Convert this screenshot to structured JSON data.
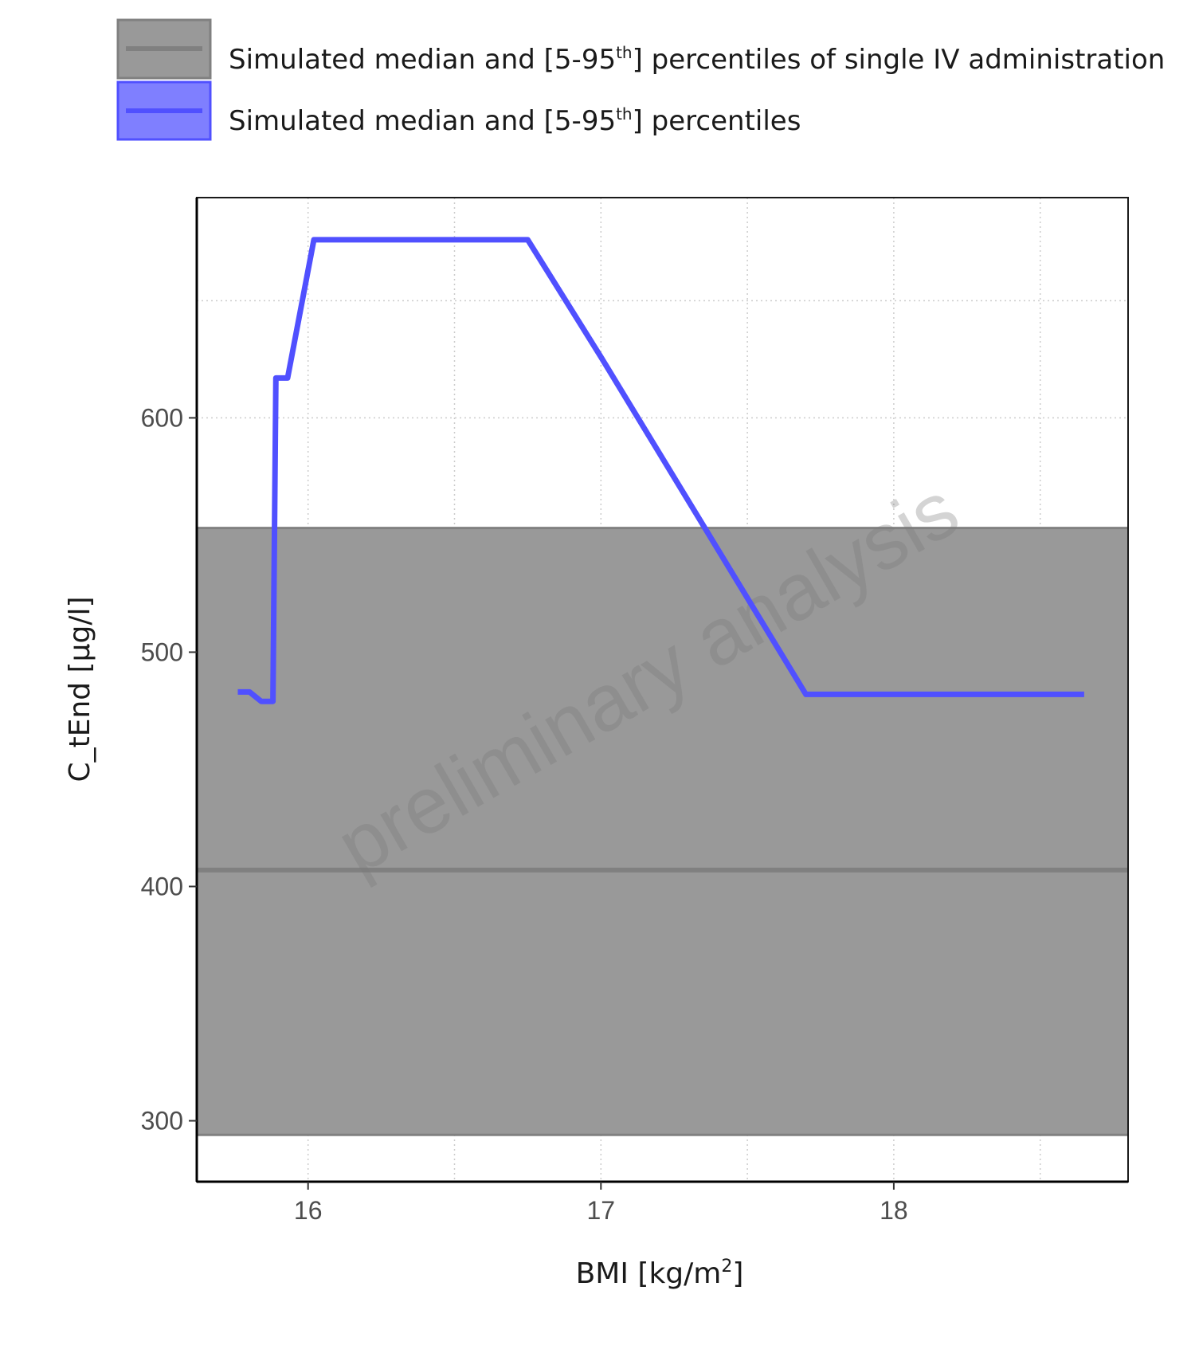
{
  "chart_data": {
    "type": "line",
    "xlabel": "BMI [kg/m²]",
    "xlabel_parts": {
      "main": "BMI [kg/m",
      "sup": "2",
      "end": "]"
    },
    "ylabel": "C_tEnd [µg/l]",
    "xlim": [
      15.62,
      18.8
    ],
    "ylim": [
      274,
      694
    ],
    "x_ticks": [
      16,
      17,
      18
    ],
    "x_tick_labels": [
      "16",
      "17",
      "18"
    ],
    "y_ticks": [
      300,
      400,
      500,
      600
    ],
    "y_tick_labels": [
      "300",
      "400",
      "500",
      "600"
    ],
    "grid": true,
    "legend_position": "top",
    "watermark": "preliminary analysis",
    "legend": [
      {
        "name": "Simulated median and [5-95th] percentiles of single IV administration",
        "parts": {
          "pre": "Simulated median and [5-95",
          "sup": "th",
          "post": "] percentiles of single IV administration"
        },
        "fill": "#999999",
        "line": "#808080"
      },
      {
        "name": "Simulated median and [5-95th] percentiles",
        "parts": {
          "pre": "Simulated median and [5-95",
          "sup": "th",
          "post": "] percentiles"
        },
        "fill": "#7f7fff",
        "line": "#5050ff"
      }
    ],
    "reference_band": {
      "name": "Simulated median and [5-95th] percentiles of single IV administration",
      "median": 407,
      "p5": 294,
      "p95": 553,
      "color": "#999999",
      "line_color": "#808080"
    },
    "series": [
      {
        "name": "Simulated median and [5-95th] percentiles",
        "color": "#5050ff",
        "x": [
          15.76,
          15.8,
          15.84,
          15.88,
          15.89,
          15.9,
          15.93,
          16.02,
          16.75,
          17.0,
          17.7,
          18.65
        ],
        "y": [
          483,
          483,
          479,
          479,
          617,
          617,
          617,
          676,
          676,
          626,
          482,
          482
        ]
      }
    ]
  }
}
